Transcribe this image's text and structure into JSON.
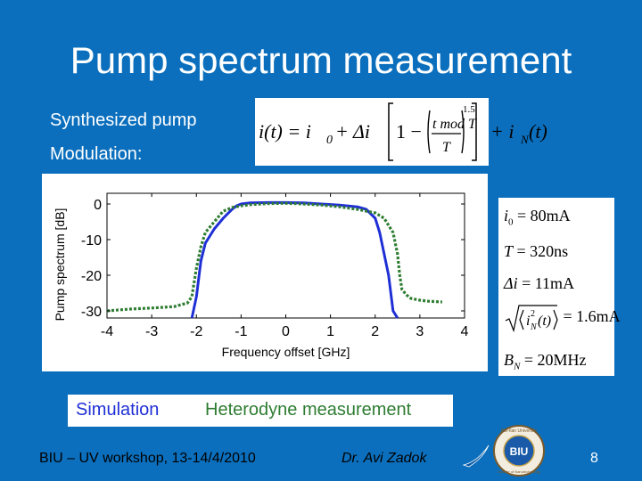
{
  "slide": {
    "title": "Pump spectrum measurement",
    "line1": "Synthesized pump",
    "line2": "Modulation:",
    "page_number": "8"
  },
  "formula": {
    "lhs": "i(t) = i",
    "sub0": "0",
    "plus_delta": " + Δi",
    "one_minus": "1 −",
    "numerator": "t mod T",
    "denominator": "T",
    "exponent": "1.5",
    "plus_iN": "+ i",
    "subN": "N",
    "t_arg": "(t)"
  },
  "params": {
    "i0": "i",
    "i0_sub": "0",
    "i0_val": "= 80mA",
    "T": "T",
    "T_val": "= 320ns",
    "di": "Δi",
    "di_val": "= 11mA",
    "iN_val": "= 1.6mA",
    "BN": "B",
    "BN_sub": "N",
    "BN_val": "= 20MHz"
  },
  "legend": {
    "simulation": "Simulation",
    "measurement": "Heterodyne measurement"
  },
  "footer": {
    "left": "BIU – UV workshop, 13-14/4/2010",
    "author": "Dr. Avi Zadok"
  },
  "logo": {
    "university": "Bar-Ilan University",
    "tagline": "Institute of Nanotechnology",
    "mark": "BIU"
  },
  "colors": {
    "background": "#0b6fbd",
    "simulation": "#1f2fd6",
    "measurement": "#2e7d32"
  },
  "chart_data": {
    "type": "line",
    "xlabel": "Frequency offset [GHz]",
    "ylabel": "Pump spectrum [dB]",
    "xlim": [
      -4,
      4
    ],
    "ylim": [
      -32,
      3
    ],
    "xticks": [
      -4,
      -3,
      -2,
      -1,
      0,
      1,
      2,
      3,
      4
    ],
    "yticks": [
      0,
      -10,
      -20,
      -30
    ],
    "series": [
      {
        "x": [
          -2.1,
          -2.0,
          -1.9,
          -1.8,
          -1.6,
          -1.4,
          -1.2,
          -1.1,
          -1.0,
          -0.8,
          -0.4,
          0,
          0.4,
          0.8,
          1.2,
          1.6,
          1.8,
          2.0,
          2.1,
          2.2,
          2.3,
          2.35,
          2.4,
          2.5
        ],
        "y": [
          -32,
          -26,
          -16,
          -11,
          -7,
          -4,
          -1.5,
          -0.5,
          0,
          0.3,
          0.4,
          0.4,
          0.3,
          0,
          -0.3,
          -0.8,
          -1.5,
          -4,
          -8,
          -14,
          -20,
          -25,
          -30,
          -32
        ]
      },
      {
        "x": [
          -4.0,
          -3.5,
          -3.0,
          -2.5,
          -2.2,
          -2.1,
          -2.05,
          -2.0,
          -1.9,
          -1.8,
          -1.6,
          -1.4,
          -1.2,
          -1.0,
          -0.8,
          -0.4,
          0,
          0.4,
          0.8,
          1.2,
          1.6,
          2.0,
          2.2,
          2.4,
          2.5,
          2.55,
          2.6,
          2.7,
          2.8,
          3.0,
          3.2,
          3.5
        ],
        "y": [
          -30,
          -29.5,
          -29.2,
          -28.8,
          -27.8,
          -26,
          -22,
          -18,
          -12,
          -8,
          -5,
          -2,
          -1,
          -0.5,
          -0.2,
          0.1,
          0.2,
          0,
          -0.3,
          -0.8,
          -1.5,
          -2.5,
          -4,
          -8,
          -14,
          -20,
          -24,
          -25.5,
          -26.5,
          -27,
          -27.3,
          -27.5
        ]
      }
    ]
  }
}
